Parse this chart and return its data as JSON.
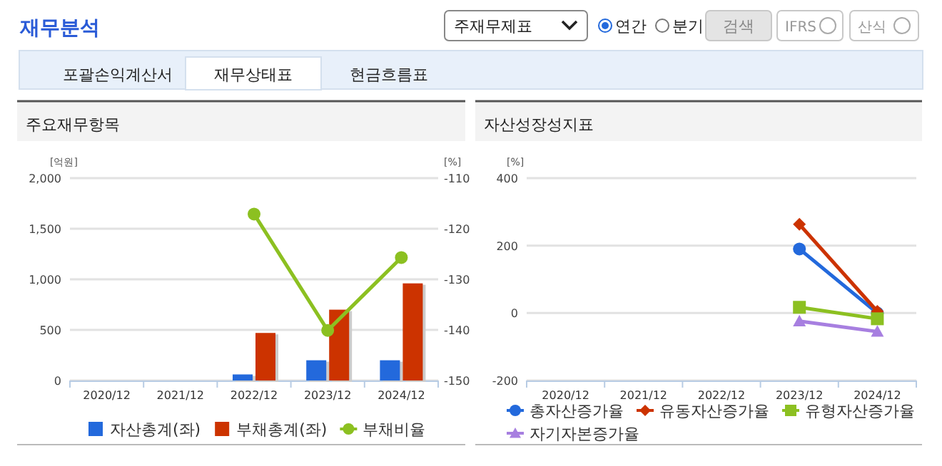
{
  "chart_data": [
    {
      "type": "other",
      "title": "재무분석",
      "annotations": [
        "주재무제표",
        "연간",
        "분기",
        "검색",
        "IFRS",
        "산식",
        "포괄손익계산서",
        "재무상태표",
        "현금흐름표"
      ]
    },
    {
      "type": "bar",
      "title": "주요재무항목",
      "categories": [
        "2020/12",
        "2021/12",
        "2022/12",
        "2023/12",
        "2024/12"
      ],
      "ylabel": "[억원]",
      "y2label": "[%]",
      "ylim": [
        0,
        2000
      ],
      "yticks": [
        0,
        500,
        {
          "value": 1000,
          "label": "1,000"
        },
        {
          "value": 1500,
          "label": "1,500"
        },
        {
          "value": 2000,
          "label": "2,000"
        }
      ],
      "y2lim": [
        -150,
        -110
      ],
      "y2ticks": [
        -150,
        -140,
        -130,
        -120,
        -110
      ],
      "grid": "y",
      "legend": "bottom",
      "series": [
        {
          "name": "자산총계(좌)",
          "color": "#2369dc",
          "values": [
            null,
            null,
            60,
            200,
            200
          ]
        },
        {
          "name": "부채총계(좌)",
          "color": "#cc3300",
          "values": [
            null,
            null,
            470,
            700,
            960
          ]
        },
        {
          "name": "부채비율",
          "type": "line",
          "axis": "y2",
          "marker": "circle",
          "color": "#8cc021",
          "values": [
            null,
            null,
            -117.1,
            -140.1,
            -125.7
          ]
        }
      ]
    },
    {
      "type": "line",
      "title": "자산성장성지표",
      "categories": [
        "2020/12",
        "2021/12",
        "2022/12",
        "2023/12",
        "2024/12"
      ],
      "ylabel": "[%]",
      "ylim": [
        -200,
        400
      ],
      "yticks": [
        -200,
        0,
        200,
        400
      ],
      "grid": "y",
      "legend": "bottom",
      "series": [
        {
          "name": "총자산증가율",
          "marker": "circle",
          "color": "#2369dc",
          "values": [
            null,
            null,
            null,
            190,
            0
          ]
        },
        {
          "name": "유동자산증가율",
          "marker": "diamond",
          "color": "#cc3300",
          "values": [
            null,
            null,
            null,
            263,
            5
          ]
        },
        {
          "name": "유형자산증가율",
          "marker": "square",
          "color": "#8cc021",
          "values": [
            null,
            null,
            null,
            17,
            -17
          ]
        },
        {
          "name": "자기자본증가율",
          "marker": "triangle",
          "color": "#a77fe0",
          "values": [
            null,
            null,
            null,
            -24,
            -55
          ]
        }
      ]
    }
  ]
}
